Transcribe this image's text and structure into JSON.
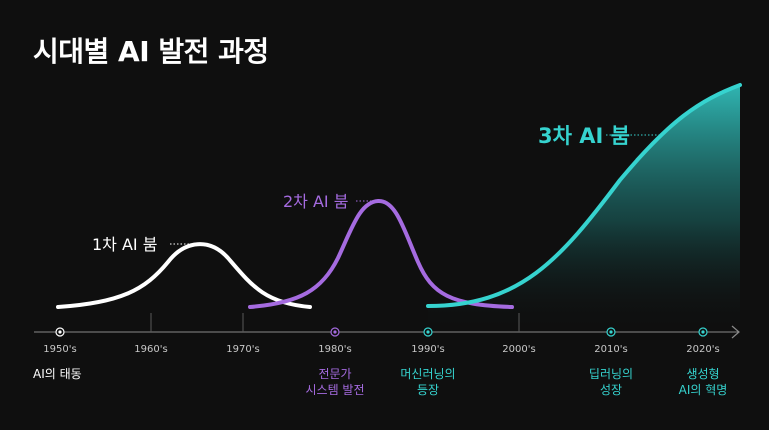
{
  "title": "시대별 AI 발전 과정",
  "booms": [
    {
      "label": "1차 AI 붐",
      "color": "#ffffff"
    },
    {
      "label": "2차 AI 붐",
      "color": "#a56be0"
    },
    {
      "label": "3차 AI 붐",
      "color": "#36d3cf"
    }
  ],
  "timeline": {
    "decades": [
      "1950's",
      "1960's",
      "1970's",
      "1980's",
      "1990's",
      "2000's",
      "2010's",
      "2020's"
    ]
  },
  "milestones": [
    {
      "lines": [
        "AI의 태동"
      ],
      "color": "#ffffff"
    },
    {
      "lines": [
        "전문가",
        "시스템 발전"
      ],
      "color": "#a56be0"
    },
    {
      "lines": [
        "머신러닝의",
        "등장"
      ],
      "color": "#36d3cf"
    },
    {
      "lines": [
        "딥러닝의",
        "성장"
      ],
      "color": "#36d3cf"
    },
    {
      "lines": [
        "생성형",
        "AI의 혁명"
      ],
      "color": "#36d3cf"
    }
  ],
  "colors": {
    "background": "#0f0f0f",
    "axis": "#8a8a8a",
    "first_boom": "#ffffff",
    "second_boom": "#a56be0",
    "third_boom": "#36d3cf"
  }
}
